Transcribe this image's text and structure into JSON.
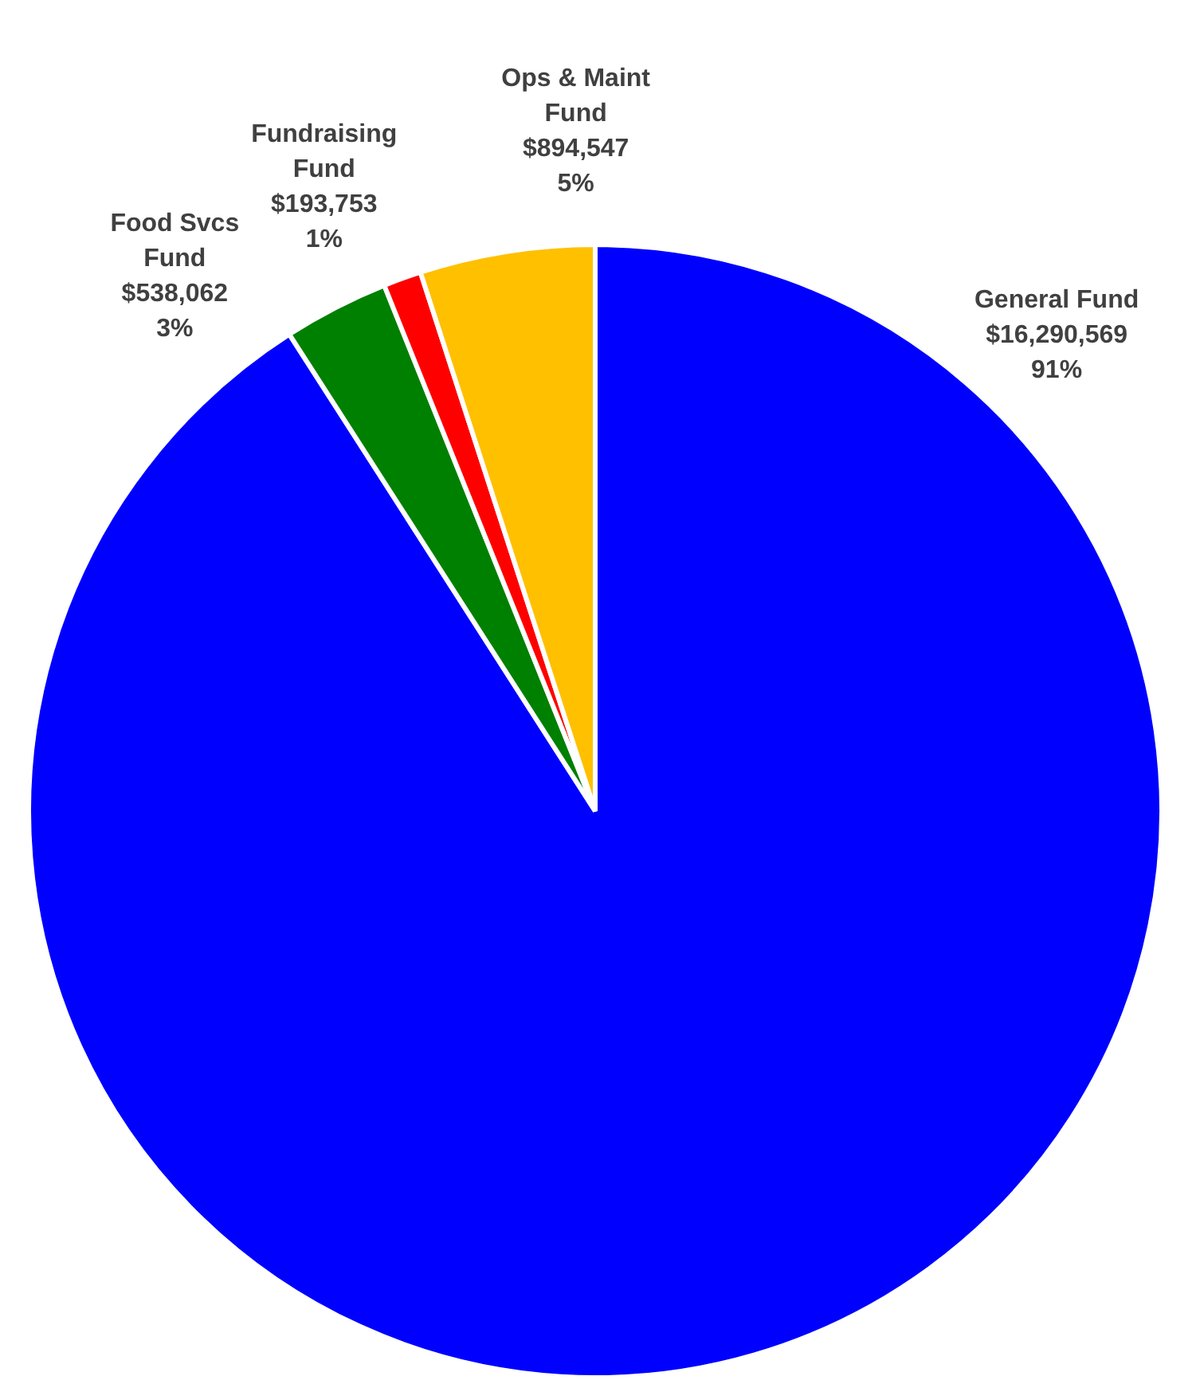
{
  "chart_data": {
    "type": "pie",
    "categories": [
      "General Fund",
      "Food Svcs Fund",
      "Fundraising Fund",
      "Ops & Maint Fund"
    ],
    "values": [
      16290569,
      538062,
      193753,
      894547
    ],
    "colors": [
      "#0000ff",
      "#008000",
      "#ff0000",
      "#ffc000"
    ],
    "value_labels": [
      "$16,290,569\n91%",
      "$538,062\n3%",
      "$193,753\n1%",
      "$894,547\n5%"
    ],
    "legend": false
  }
}
